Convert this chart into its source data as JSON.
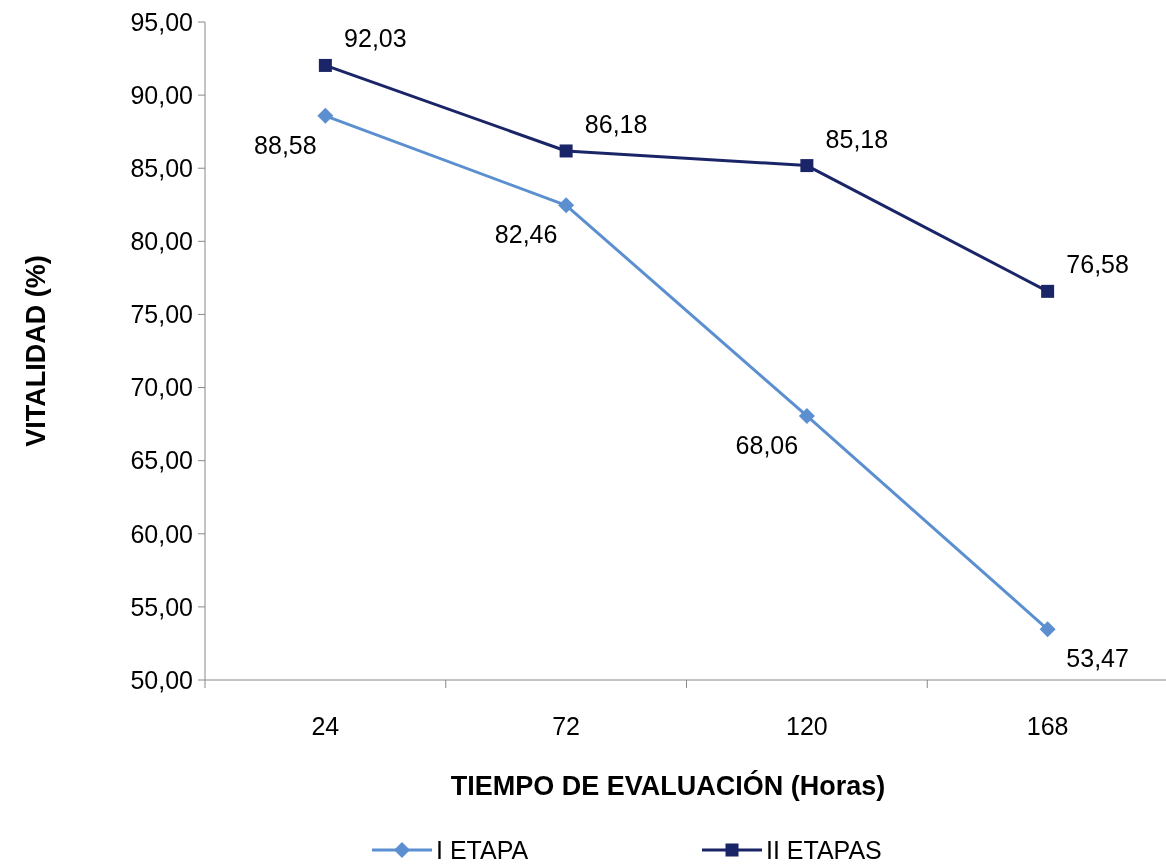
{
  "chart_data": {
    "type": "line",
    "xlabel": "TIEMPO DE EVALUACIÓN  (Horas)",
    "ylabel": "VITALIDAD (%)",
    "categories": [
      "24",
      "72",
      "120",
      "168"
    ],
    "series": [
      {
        "name": "I ETAPA",
        "color": "#5b8fd0",
        "marker": "diamond",
        "values": [
          88.58,
          82.46,
          68.06,
          53.47
        ],
        "value_labels": [
          "88,58",
          "82,46",
          "68,06",
          "53,47"
        ]
      },
      {
        "name": "II ETAPAS",
        "color": "#1a2568",
        "marker": "square",
        "values": [
          92.03,
          86.18,
          85.18,
          76.58
        ],
        "value_labels": [
          "92,03",
          "86,18",
          "85,18",
          "76,58"
        ]
      }
    ],
    "ylim": [
      50,
      95
    ],
    "yticks": [
      {
        "value": 50,
        "label": "50,00"
      },
      {
        "value": 55,
        "label": "55,00"
      },
      {
        "value": 60,
        "label": "60,00"
      },
      {
        "value": 65,
        "label": "65,00"
      },
      {
        "value": 70,
        "label": "70,00"
      },
      {
        "value": 75,
        "label": "75,00"
      },
      {
        "value": 80,
        "label": "80,00"
      },
      {
        "value": 85,
        "label": "85,00"
      },
      {
        "value": 90,
        "label": "90,00"
      },
      {
        "value": 95,
        "label": "95,00"
      }
    ],
    "legend": "bottom",
    "grid": false
  }
}
